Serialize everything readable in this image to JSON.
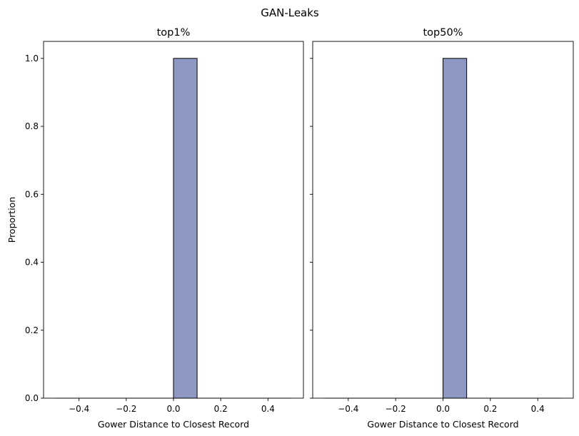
{
  "figure": {
    "title": "GAN-Leaks"
  },
  "chart_data": [
    {
      "type": "bar",
      "title": "top1%",
      "xlabel": "Gower Distance to Closest Record",
      "ylabel": "Proportion",
      "xlim": [
        -0.55,
        0.55
      ],
      "ylim": [
        0,
        1.05
      ],
      "xticks": [
        -0.4,
        -0.2,
        0.0,
        0.2,
        0.4
      ],
      "xtick_labels": [
        "−0.4",
        "−0.2",
        "0.0",
        "0.2",
        "0.4"
      ],
      "yticks": [
        0.0,
        0.2,
        0.4,
        0.6,
        0.8,
        1.0
      ],
      "ytick_labels": [
        "0.0",
        "0.2",
        "0.4",
        "0.6",
        "0.8",
        "1.0"
      ],
      "baseline": [
        -0.5,
        0.5
      ],
      "bins": [
        {
          "x0": 0.0,
          "x1": 0.1,
          "value": 1.0
        }
      ],
      "bar_color": "#8e97c2",
      "grid": false
    },
    {
      "type": "bar",
      "title": "top50%",
      "xlabel": "Gower Distance to Closest Record",
      "ylabel": "",
      "xlim": [
        -0.55,
        0.55
      ],
      "ylim": [
        0,
        1.05
      ],
      "xticks": [
        -0.4,
        -0.2,
        0.0,
        0.2,
        0.4
      ],
      "xtick_labels": [
        "−0.4",
        "−0.2",
        "0.0",
        "0.2",
        "0.4"
      ],
      "yticks": [
        0.0,
        0.2,
        0.4,
        0.6,
        0.8,
        1.0
      ],
      "ytick_labels": [],
      "baseline": [
        -0.5,
        0.5
      ],
      "bins": [
        {
          "x0": 0.0,
          "x1": 0.1,
          "value": 1.0
        }
      ],
      "bar_color": "#8e97c2",
      "grid": false
    }
  ]
}
